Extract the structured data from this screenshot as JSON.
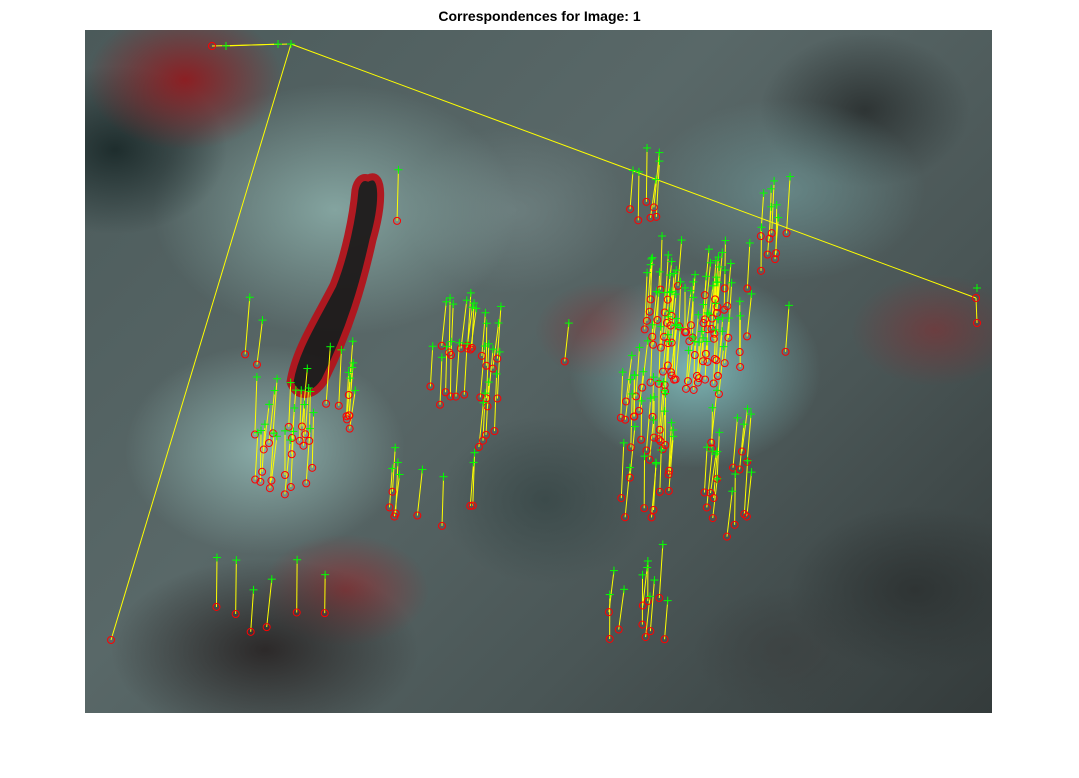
{
  "figure": {
    "title": "Correspondences for Image: 1"
  },
  "colors": {
    "match_line": "#ffff00",
    "point_current": "#00ff00",
    "point_reference": "#ff0000",
    "background": "#ffffff"
  },
  "icons": {
    "current_marker": "plus-marker",
    "reference_marker": "circle-marker"
  }
}
